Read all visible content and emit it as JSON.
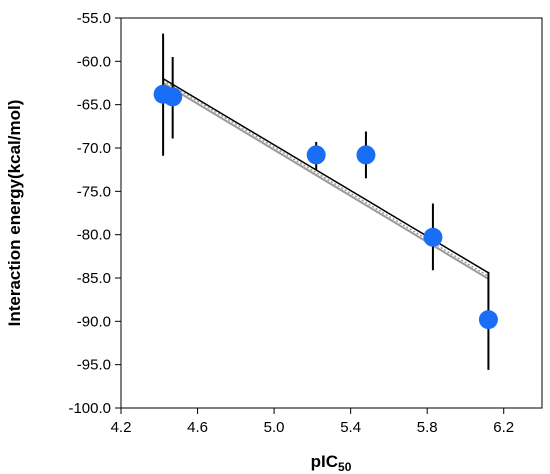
{
  "chart_data": {
    "type": "scatter",
    "title": "",
    "xlabel": "pIC",
    "xlabel_sub": "50",
    "ylabel": "Interaction energy(kcal/mol)",
    "xlim": [
      4.2,
      6.4
    ],
    "ylim": [
      -100.0,
      -55.0
    ],
    "x_ticks": [
      "4.2",
      "4.6",
      "5.0",
      "5.4",
      "5.8",
      "6.2"
    ],
    "y_ticks": [
      "-55.0",
      "-60.0",
      "-65.0",
      "-70.0",
      "-75.0",
      "-80.0",
      "-85.0",
      "-90.0",
      "-95.0",
      "-100.0"
    ],
    "grid": false,
    "points": [
      {
        "x": 4.42,
        "y": -63.8,
        "err_low": -70.9,
        "err_high": -56.8
      },
      {
        "x": 4.47,
        "y": -64.1,
        "err_low": -68.9,
        "err_high": -59.5
      },
      {
        "x": 5.22,
        "y": -70.8,
        "err_low": -72.5,
        "err_high": -69.3
      },
      {
        "x": 5.48,
        "y": -70.8,
        "err_low": -73.5,
        "err_high": -68.1
      },
      {
        "x": 5.83,
        "y": -80.3,
        "err_low": -84.1,
        "err_high": -76.4
      },
      {
        "x": 6.12,
        "y": -89.8,
        "err_low": -95.6,
        "err_high": -84.3
      }
    ],
    "fit_lines": [
      {
        "style": "solid-black",
        "x": [
          4.42,
          6.12
        ],
        "y": [
          -62.0,
          -84.4
        ]
      },
      {
        "style": "solid-gray",
        "x": [
          4.42,
          6.12
        ],
        "y": [
          -62.5,
          -85.1
        ]
      },
      {
        "style": "dotted-gray",
        "x": [
          4.42,
          6.12
        ],
        "y": [
          -62.2,
          -84.8
        ]
      }
    ],
    "colors": {
      "marker": "#1a6ef5",
      "errorbar": "#000000",
      "fit_black": "#000000",
      "fit_gray": "#9a9a9a",
      "axis": "#000000"
    }
  }
}
